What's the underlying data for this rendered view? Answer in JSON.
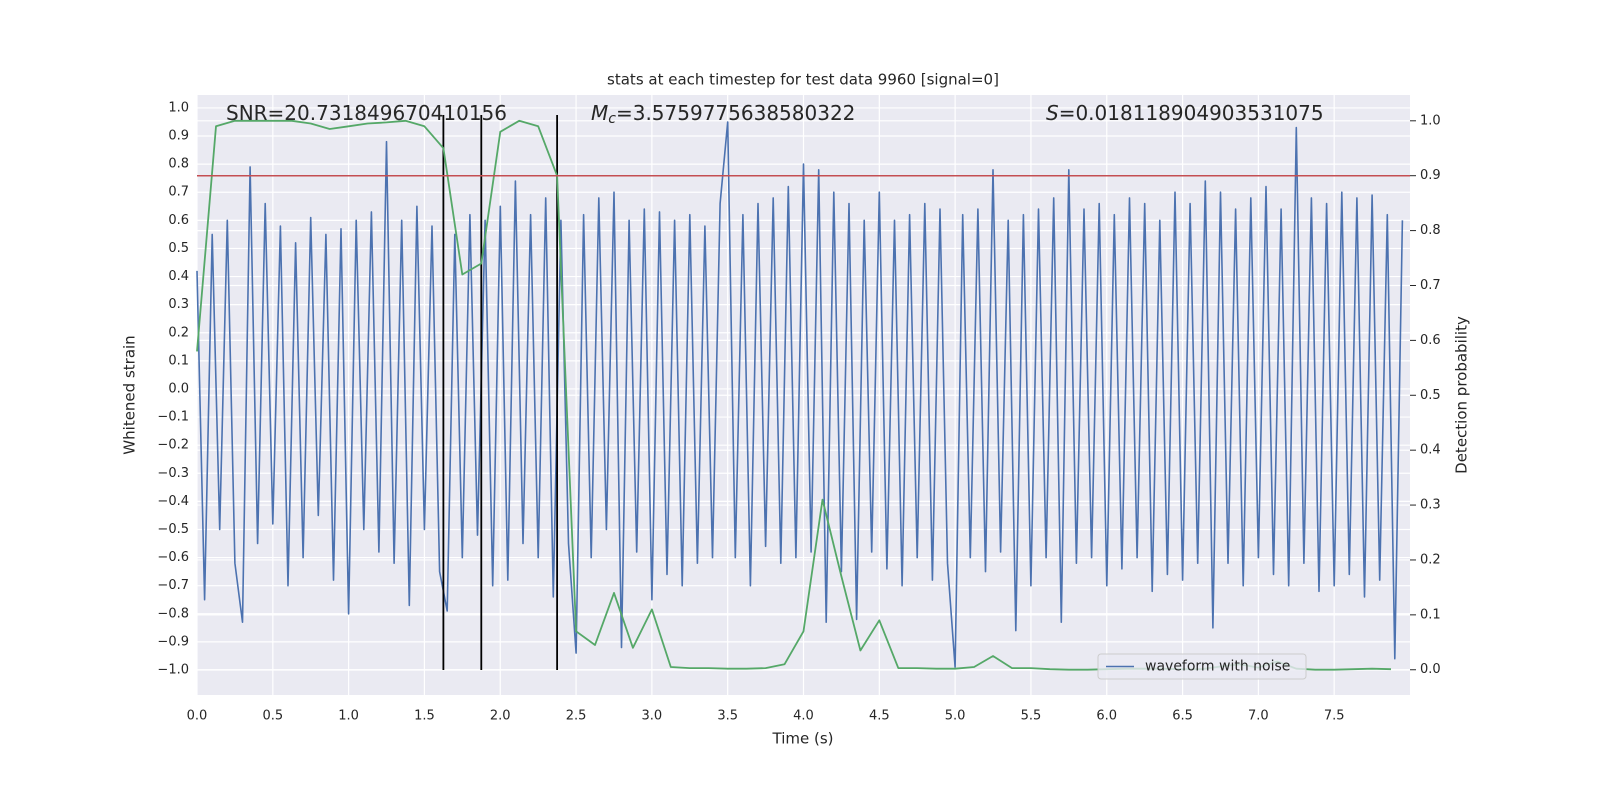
{
  "chart_data": {
    "type": "line",
    "title": "stats at each timestep for test data 9960 [signal=0]",
    "xlabel": "Time (s)",
    "ylabel": "Whitened strain",
    "y2label": "Detection probability",
    "annotations": [
      {
        "text": "SNR=20.731849670410156"
      },
      {
        "symbol": "M",
        "subscript": "c",
        "text": "=3.5759775638580322"
      },
      {
        "symbol": "S",
        "text": "=0.018118904903531075"
      }
    ],
    "xlim": [
      0,
      8.0
    ],
    "ylim": [
      -1.089,
      1.046
    ],
    "y2lim": [
      -0.046,
      1.047
    ],
    "grid": true,
    "legend": "lower right",
    "xticks": [
      {
        "value": 0,
        "label": "0.0"
      },
      {
        "value": 0.5,
        "label": "0.5"
      },
      {
        "value": 1,
        "label": "1.0"
      },
      {
        "value": 1.5,
        "label": "1.5"
      },
      {
        "value": 2,
        "label": "2.0"
      },
      {
        "value": 2.5,
        "label": "2.5"
      },
      {
        "value": 3,
        "label": "3.0"
      },
      {
        "value": 3.5,
        "label": "3.5"
      },
      {
        "value": 4,
        "label": "4.0"
      },
      {
        "value": 4.5,
        "label": "4.5"
      },
      {
        "value": 5,
        "label": "5.0"
      },
      {
        "value": 5.5,
        "label": "5.5"
      },
      {
        "value": 6,
        "label": "6.0"
      },
      {
        "value": 6.5,
        "label": "6.5"
      },
      {
        "value": 7,
        "label": "7.0"
      },
      {
        "value": 7.5,
        "label": "7.5"
      }
    ],
    "yticks": [
      {
        "value": -1,
        "label": "−1.0"
      },
      {
        "value": -0.9,
        "label": "−0.9"
      },
      {
        "value": -0.8,
        "label": "−0.8"
      },
      {
        "value": -0.7,
        "label": "−0.7"
      },
      {
        "value": -0.6,
        "label": "−0.6"
      },
      {
        "value": -0.5,
        "label": "−0.5"
      },
      {
        "value": -0.4,
        "label": "−0.4"
      },
      {
        "value": -0.3,
        "label": "−0.3"
      },
      {
        "value": -0.2,
        "label": "−0.2"
      },
      {
        "value": -0.1,
        "label": "−0.1"
      },
      {
        "value": 0,
        "label": "0.0"
      },
      {
        "value": 0.1,
        "label": "0.1"
      },
      {
        "value": 0.2,
        "label": "0.2"
      },
      {
        "value": 0.3,
        "label": "0.3"
      },
      {
        "value": 0.4,
        "label": "0.4"
      },
      {
        "value": 0.5,
        "label": "0.5"
      },
      {
        "value": 0.6,
        "label": "0.6"
      },
      {
        "value": 0.7,
        "label": "0.7"
      },
      {
        "value": 0.8,
        "label": "0.8"
      },
      {
        "value": 0.9,
        "label": "0.9"
      },
      {
        "value": 1,
        "label": "1.0"
      }
    ],
    "y2ticks": [
      {
        "value": 0,
        "label": "0.0"
      },
      {
        "value": 0.1,
        "label": "0.1"
      },
      {
        "value": 0.2,
        "label": "0.2"
      },
      {
        "value": 0.3,
        "label": "0.3"
      },
      {
        "value": 0.4,
        "label": "0.4"
      },
      {
        "value": 0.5,
        "label": "0.5"
      },
      {
        "value": 0.6,
        "label": "0.6"
      },
      {
        "value": 0.7,
        "label": "0.7"
      },
      {
        "value": 0.8,
        "label": "0.8"
      },
      {
        "value": 0.9,
        "label": "0.9"
      },
      {
        "value": 1,
        "label": "1.0"
      }
    ],
    "series": [
      {
        "name": "waveform with noise",
        "color": "#4c72b0",
        "axis": "y",
        "x": [
          0,
          0.05,
          0.1,
          0.15,
          0.2,
          0.25,
          0.3,
          0.35,
          0.4,
          0.45,
          0.5,
          0.55,
          0.6,
          0.65,
          0.7,
          0.75,
          0.8,
          0.85,
          0.9,
          0.95,
          1,
          1.05,
          1.1,
          1.15,
          1.2,
          1.25,
          1.3,
          1.35,
          1.4,
          1.45,
          1.5,
          1.55,
          1.6,
          1.65,
          1.7,
          1.75,
          1.8,
          1.85,
          1.9,
          1.95,
          2,
          2.05,
          2.1,
          2.15,
          2.2,
          2.25,
          2.3,
          2.35,
          2.4,
          2.45,
          2.5,
          2.55,
          2.6,
          2.65,
          2.7,
          2.75,
          2.8,
          2.85,
          2.9,
          2.95,
          3,
          3.05,
          3.1,
          3.15,
          3.2,
          3.25,
          3.3,
          3.35,
          3.4,
          3.45,
          3.5,
          3.55,
          3.6,
          3.65,
          3.7,
          3.75,
          3.8,
          3.85,
          3.9,
          3.95,
          4,
          4.05,
          4.1,
          4.15,
          4.2,
          4.25,
          4.3,
          4.35,
          4.4,
          4.45,
          4.5,
          4.55,
          4.6,
          4.65,
          4.7,
          4.75,
          4.8,
          4.85,
          4.9,
          4.95,
          5,
          5.05,
          5.1,
          5.15,
          5.2,
          5.25,
          5.3,
          5.35,
          5.4,
          5.45,
          5.5,
          5.55,
          5.6,
          5.65,
          5.7,
          5.75,
          5.8,
          5.85,
          5.9,
          5.95,
          6,
          6.05,
          6.1,
          6.15,
          6.2,
          6.25,
          6.3,
          6.35,
          6.4,
          6.45,
          6.5,
          6.55,
          6.6,
          6.65,
          6.7,
          6.75,
          6.8,
          6.85,
          6.9,
          6.95,
          7,
          7.05,
          7.1,
          7.15,
          7.2,
          7.25,
          7.3,
          7.35,
          7.4,
          7.45,
          7.5,
          7.55,
          7.6,
          7.65,
          7.7,
          7.75,
          7.8,
          7.85,
          7.9,
          7.95
        ],
        "values": [
          0.42,
          -0.75,
          0.55,
          -0.5,
          0.6,
          -0.62,
          -0.83,
          0.79,
          -0.55,
          0.66,
          -0.48,
          0.58,
          -0.7,
          0.52,
          -0.6,
          0.61,
          -0.45,
          0.55,
          -0.68,
          0.57,
          -0.8,
          0.6,
          -0.5,
          0.63,
          -0.58,
          0.88,
          -0.62,
          0.6,
          -0.77,
          0.65,
          -0.5,
          0.58,
          -0.65,
          -0.79,
          0.55,
          -0.6,
          0.62,
          -0.52,
          0.6,
          -0.7,
          0.65,
          -0.68,
          0.74,
          -0.55,
          0.62,
          -0.6,
          0.68,
          -0.74,
          0.6,
          -0.55,
          -0.94,
          0.62,
          -0.6,
          0.68,
          -0.5,
          0.7,
          -0.92,
          0.6,
          -0.58,
          0.64,
          -0.75,
          0.63,
          -0.66,
          0.6,
          -0.7,
          0.62,
          -0.62,
          0.58,
          -0.6,
          0.66,
          0.95,
          -0.6,
          0.62,
          -0.7,
          0.66,
          -0.56,
          0.68,
          -0.62,
          0.72,
          -0.6,
          0.8,
          -0.58,
          0.78,
          -0.83,
          0.7,
          -0.65,
          0.66,
          -0.82,
          0.6,
          -0.58,
          0.7,
          -0.64,
          0.6,
          -0.7,
          0.62,
          -0.6,
          0.66,
          -0.68,
          0.64,
          -0.62,
          -0.99,
          0.62,
          -0.6,
          0.64,
          -0.65,
          0.78,
          -0.58,
          0.6,
          -0.86,
          0.62,
          -0.7,
          0.64,
          -0.6,
          0.68,
          -0.83,
          0.78,
          -0.62,
          0.64,
          -0.6,
          0.66,
          -0.7,
          0.62,
          -0.64,
          0.68,
          -0.6,
          0.66,
          -0.72,
          0.6,
          -0.66,
          0.7,
          -0.68,
          0.66,
          -0.62,
          0.74,
          -0.85,
          0.7,
          -0.62,
          0.64,
          -0.7,
          0.68,
          -0.6,
          0.72,
          -0.66,
          0.64,
          -0.7,
          0.93,
          -0.62,
          0.68,
          -0.72,
          0.66,
          -0.7,
          0.7,
          -0.66,
          0.68,
          -0.74,
          0.69,
          -0.68,
          0.62,
          -0.96,
          0.6
        ]
      },
      {
        "color": "#55a868",
        "axis": "y2",
        "x": [
          0,
          0.125,
          0.25,
          0.375,
          0.5,
          0.625,
          0.75,
          0.875,
          1,
          1.125,
          1.25,
          1.375,
          1.5,
          1.625,
          1.75,
          1.875,
          2,
          2.125,
          2.25,
          2.375,
          2.5,
          2.625,
          2.75,
          2.875,
          3,
          3.125,
          3.25,
          3.375,
          3.5,
          3.625,
          3.75,
          3.875,
          4,
          4.125,
          4.25,
          4.375,
          4.5,
          4.625,
          4.75,
          4.875,
          5,
          5.125,
          5.25,
          5.375,
          5.5,
          5.625,
          5.75,
          5.875,
          6,
          6.125,
          6.25,
          6.375,
          6.5,
          6.625,
          6.75,
          6.875,
          7,
          7.125,
          7.25,
          7.375,
          7.5,
          7.625,
          7.75,
          7.875
        ],
        "values": [
          0.58,
          0.99,
          1.0,
          1.0,
          1.0,
          1.0,
          0.995,
          0.985,
          0.99,
          0.995,
          0.997,
          1.0,
          0.99,
          0.95,
          0.72,
          0.74,
          0.98,
          1.0,
          0.99,
          0.9,
          0.07,
          0.045,
          0.14,
          0.04,
          0.11,
          0.005,
          0.003,
          0.003,
          0.002,
          0.002,
          0.003,
          0.01,
          0.07,
          0.31,
          0.17,
          0.035,
          0.09,
          0.003,
          0.003,
          0.002,
          0.002,
          0.005,
          0.025,
          0.003,
          0.003,
          0.001,
          0,
          0,
          0.001,
          0.002,
          0.002,
          0.002,
          0.001,
          0.001,
          0.006,
          0.01,
          0.004,
          0.015,
          0.002,
          0,
          0,
          0.001,
          0.002,
          0.001
        ]
      }
    ],
    "vlines": {
      "x": [
        1.625,
        1.875,
        2.375
      ],
      "ymin": -1.0,
      "ymax": 0.975,
      "color": "#000000"
    },
    "hline": {
      "y": 0.9,
      "axis": "y2",
      "color": "#c44e52"
    }
  }
}
